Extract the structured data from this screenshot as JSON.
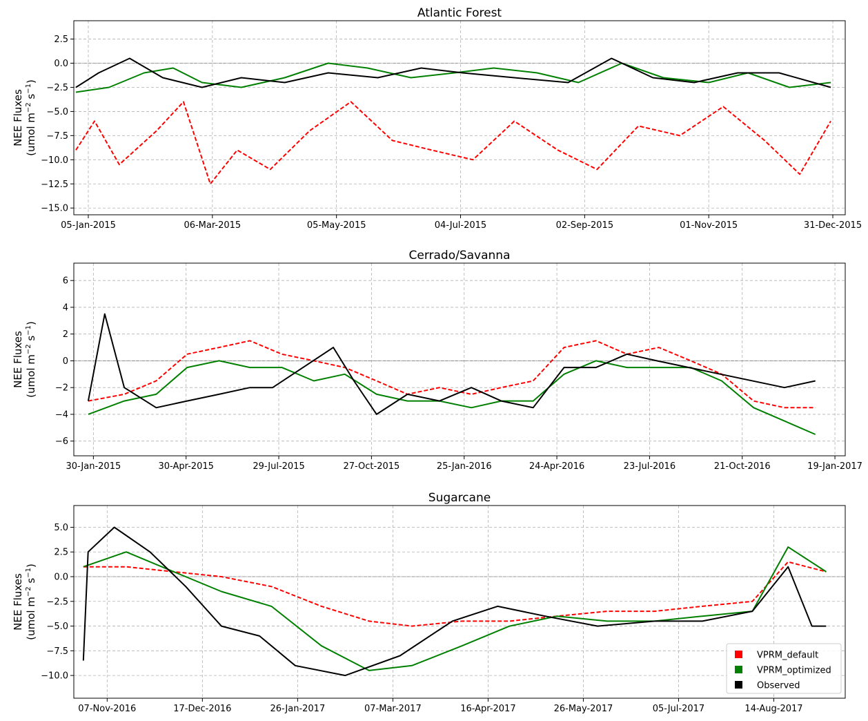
{
  "colors": {
    "VPRM_default": "#ff0000",
    "VPRM_optimized": "#008000",
    "Observed": "#000000",
    "grid": "#b0b0b0"
  },
  "legend": {
    "placement": "lower right",
    "entries": [
      "VPRM_default",
      "VPRM_optimized",
      "Observed"
    ]
  },
  "chart_data": [
    {
      "type": "line",
      "title": "Atlantic Forest",
      "ylabel_line1": "NEE Fluxes",
      "ylabel_line2": "(umol m",
      "ylabel_exp1": "−2",
      "ylabel_mid": " s",
      "ylabel_exp2": "−1",
      "ylabel_end": ")",
      "x_range": [
        "2014-12-29",
        "2016-01-06"
      ],
      "ylim": [
        -15.7,
        4.4
      ],
      "x_ticks": [
        {
          "date": "2015-01-05",
          "label": "05-Jan-2015"
        },
        {
          "date": "2015-03-06",
          "label": "06-Mar-2015"
        },
        {
          "date": "2015-05-05",
          "label": "05-May-2015"
        },
        {
          "date": "2015-07-04",
          "label": "04-Jul-2015"
        },
        {
          "date": "2015-09-02",
          "label": "02-Sep-2015"
        },
        {
          "date": "2015-11-01",
          "label": "01-Nov-2015"
        },
        {
          "date": "2015-12-31",
          "label": "31-Dec-2015"
        }
      ],
      "y_ticks": [
        {
          "value": 2.5,
          "label": "2.5"
        },
        {
          "value": 0,
          "label": "0.0"
        },
        {
          "value": -2.5,
          "label": "−2.5"
        },
        {
          "value": -5,
          "label": "−5.0"
        },
        {
          "value": -7.5,
          "label": "−7.5"
        },
        {
          "value": -10,
          "label": "−10.0"
        },
        {
          "value": -12.5,
          "label": "−12.5"
        },
        {
          "value": -15,
          "label": "−15.0"
        }
      ],
      "grid": true,
      "series": [
        {
          "name": "VPRM_default",
          "style": "dashed",
          "x": [
            "2014-12-30",
            "2015-01-08",
            "2015-01-20",
            "2015-02-07",
            "2015-02-20",
            "2015-03-05",
            "2015-03-18",
            "2015-04-03",
            "2015-04-22",
            "2015-05-12",
            "2015-06-01",
            "2015-06-20",
            "2015-07-10",
            "2015-07-30",
            "2015-08-20",
            "2015-09-08",
            "2015-09-28",
            "2015-10-18",
            "2015-11-08",
            "2015-11-28",
            "2015-12-15",
            "2015-12-30"
          ],
          "values": [
            -9.0,
            -6.0,
            -10.5,
            -7.0,
            -4.0,
            -12.5,
            -9.0,
            -11.0,
            -7.0,
            -4.0,
            -8.0,
            -9.0,
            -10.0,
            -6.0,
            -9.0,
            -11.0,
            -6.5,
            -7.5,
            -4.5,
            -8.0,
            -11.5,
            -6.0
          ]
        },
        {
          "name": "VPRM_optimized",
          "style": "solid",
          "x": [
            "2014-12-30",
            "2015-01-15",
            "2015-02-01",
            "2015-02-15",
            "2015-03-01",
            "2015-03-20",
            "2015-04-10",
            "2015-05-01",
            "2015-05-20",
            "2015-06-10",
            "2015-07-01",
            "2015-07-20",
            "2015-08-10",
            "2015-08-30",
            "2015-09-20",
            "2015-10-10",
            "2015-11-01",
            "2015-11-20",
            "2015-12-10",
            "2015-12-30"
          ],
          "values": [
            -3.0,
            -2.5,
            -1.0,
            -0.5,
            -2.0,
            -2.5,
            -1.5,
            0.0,
            -0.5,
            -1.5,
            -1.0,
            -0.5,
            -1.0,
            -2.0,
            0.0,
            -1.5,
            -2.0,
            -1.0,
            -2.5,
            -2.0
          ]
        },
        {
          "name": "Observed",
          "style": "solid",
          "x": [
            "2014-12-30",
            "2015-01-10",
            "2015-01-25",
            "2015-02-10",
            "2015-03-01",
            "2015-03-20",
            "2015-04-10",
            "2015-05-01",
            "2015-05-25",
            "2015-06-15",
            "2015-07-05",
            "2015-07-30",
            "2015-08-25",
            "2015-09-15",
            "2015-10-05",
            "2015-10-25",
            "2015-11-15",
            "2015-12-05",
            "2015-12-30"
          ],
          "values": [
            -2.5,
            -1.0,
            0.5,
            -1.5,
            -2.5,
            -1.5,
            -2.0,
            -1.0,
            -1.5,
            -0.5,
            -1.0,
            -1.5,
            -2.0,
            0.5,
            -1.5,
            -2.0,
            -1.0,
            -1.0,
            -2.5
          ]
        }
      ]
    },
    {
      "type": "line",
      "title": "Cerrado/Savanna",
      "ylabel_line1": "NEE Fluxes",
      "ylabel_line2": "(umol m",
      "ylabel_exp1": "−2",
      "ylabel_mid": " s",
      "ylabel_exp2": "−1",
      "ylabel_end": ")",
      "x_range": [
        "2015-01-11",
        "2017-01-29"
      ],
      "ylim": [
        -7.1,
        7.3
      ],
      "x_ticks": [
        {
          "date": "2015-01-30",
          "label": "30-Jan-2015"
        },
        {
          "date": "2015-04-30",
          "label": "30-Apr-2015"
        },
        {
          "date": "2015-07-29",
          "label": "29-Jul-2015"
        },
        {
          "date": "2015-10-27",
          "label": "27-Oct-2015"
        },
        {
          "date": "2016-01-25",
          "label": "25-Jan-2016"
        },
        {
          "date": "2016-04-24",
          "label": "24-Apr-2016"
        },
        {
          "date": "2016-07-23",
          "label": "23-Jul-2016"
        },
        {
          "date": "2016-10-21",
          "label": "21-Oct-2016"
        },
        {
          "date": "2017-01-19",
          "label": "19-Jan-2017"
        }
      ],
      "y_ticks": [
        {
          "value": 6,
          "label": "6"
        },
        {
          "value": 4,
          "label": "4"
        },
        {
          "value": 2,
          "label": "2"
        },
        {
          "value": 0,
          "label": "0"
        },
        {
          "value": -2,
          "label": "−2"
        },
        {
          "value": -4,
          "label": "−4"
        },
        {
          "value": -6,
          "label": "−6"
        }
      ],
      "grid": true,
      "series": [
        {
          "name": "VPRM_default",
          "style": "dashed",
          "x": [
            "2015-01-25",
            "2015-03-01",
            "2015-04-01",
            "2015-05-01",
            "2015-06-01",
            "2015-07-01",
            "2015-08-01",
            "2015-09-01",
            "2015-10-01",
            "2015-11-01",
            "2015-12-01",
            "2016-01-01",
            "2016-02-01",
            "2016-03-01",
            "2016-04-01",
            "2016-05-01",
            "2016-06-01",
            "2016-07-01",
            "2016-08-01",
            "2016-09-01",
            "2016-10-01",
            "2016-11-01",
            "2016-12-01",
            "2016-12-31"
          ],
          "values": [
            -3.0,
            -2.5,
            -1.5,
            0.5,
            1.0,
            1.5,
            0.5,
            0.0,
            -0.5,
            -1.5,
            -2.5,
            -2.0,
            -2.5,
            -2.0,
            -1.5,
            1.0,
            1.5,
            0.5,
            1.0,
            0.0,
            -1.0,
            -3.0,
            -3.5,
            -3.5
          ]
        },
        {
          "name": "VPRM_optimized",
          "style": "solid",
          "x": [
            "2015-01-25",
            "2015-03-01",
            "2015-04-01",
            "2015-05-01",
            "2015-06-01",
            "2015-07-01",
            "2015-08-01",
            "2015-09-01",
            "2015-10-01",
            "2015-11-01",
            "2015-12-01",
            "2016-01-01",
            "2016-02-01",
            "2016-03-01",
            "2016-04-01",
            "2016-05-01",
            "2016-06-01",
            "2016-07-01",
            "2016-08-01",
            "2016-09-01",
            "2016-10-01",
            "2016-11-01",
            "2016-12-01",
            "2016-12-31"
          ],
          "values": [
            -4.0,
            -3.0,
            -2.5,
            -0.5,
            0.0,
            -0.5,
            -0.5,
            -1.5,
            -1.0,
            -2.5,
            -3.0,
            -3.0,
            -3.5,
            -3.0,
            -3.0,
            -1.0,
            0.0,
            -0.5,
            -0.5,
            -0.5,
            -1.5,
            -3.5,
            -4.5,
            -5.5
          ]
        },
        {
          "name": "Observed",
          "style": "solid",
          "x": [
            "2015-01-25",
            "2015-02-10",
            "2015-03-01",
            "2015-04-01",
            "2015-05-01",
            "2015-06-01",
            "2015-07-01",
            "2015-07-23",
            "2015-09-20",
            "2015-10-10",
            "2015-11-01",
            "2015-12-01",
            "2016-01-01",
            "2016-02-01",
            "2016-03-01",
            "2016-04-01",
            "2016-05-01",
            "2016-06-01",
            "2016-07-01",
            "2016-07-30",
            "2016-12-01",
            "2016-12-31"
          ],
          "values": [
            -3.0,
            3.5,
            -2.0,
            -3.5,
            -3.0,
            -2.5,
            -2.0,
            -2.0,
            1.0,
            -1.5,
            -4.0,
            -2.5,
            -3.0,
            -2.0,
            -3.0,
            -3.5,
            -0.5,
            -0.5,
            0.5,
            0.0,
            -2.0,
            -1.5
          ]
        }
      ]
    },
    {
      "type": "line",
      "title": "Sugarcane",
      "ylabel_line1": "NEE Fluxes",
      "ylabel_line2": "(umol m",
      "ylabel_exp1": "−2",
      "ylabel_mid": " s",
      "ylabel_exp2": "−1",
      "ylabel_end": ")",
      "x_range": [
        "2016-10-24",
        "2017-09-13"
      ],
      "ylim": [
        -12.3,
        7.2
      ],
      "x_ticks": [
        {
          "date": "2016-11-07",
          "label": "07-Nov-2016"
        },
        {
          "date": "2016-12-17",
          "label": "17-Dec-2016"
        },
        {
          "date": "2017-01-26",
          "label": "26-Jan-2017"
        },
        {
          "date": "2017-03-07",
          "label": "07-Mar-2017"
        },
        {
          "date": "2017-04-16",
          "label": "16-Apr-2017"
        },
        {
          "date": "2017-05-26",
          "label": "26-May-2017"
        },
        {
          "date": "2017-07-05",
          "label": "05-Jul-2017"
        },
        {
          "date": "2017-08-14",
          "label": "14-Aug-2017"
        }
      ],
      "y_ticks": [
        {
          "value": 5,
          "label": "5.0"
        },
        {
          "value": 2.5,
          "label": "2.5"
        },
        {
          "value": 0,
          "label": "0.0"
        },
        {
          "value": -2.5,
          "label": "−2.5"
        },
        {
          "value": -5,
          "label": "−5.0"
        },
        {
          "value": -7.5,
          "label": "−7.5"
        },
        {
          "value": -10,
          "label": "−10.0"
        }
      ],
      "grid": true,
      "series": [
        {
          "name": "VPRM_default",
          "style": "dashed",
          "x": [
            "2016-10-28",
            "2016-11-15",
            "2016-12-05",
            "2016-12-25",
            "2017-01-15",
            "2017-02-05",
            "2017-02-25",
            "2017-03-15",
            "2017-04-05",
            "2017-04-25",
            "2017-05-15",
            "2017-06-05",
            "2017-06-25",
            "2017-07-15",
            "2017-08-05",
            "2017-08-20",
            "2017-09-05"
          ],
          "values": [
            1.0,
            1.0,
            0.5,
            0.0,
            -1.0,
            -3.0,
            -4.5,
            -5.0,
            -4.5,
            -4.5,
            -4.0,
            -3.5,
            -3.5,
            -3.0,
            -2.5,
            1.5,
            0.5
          ]
        },
        {
          "name": "VPRM_optimized",
          "style": "solid",
          "x": [
            "2016-10-28",
            "2016-11-15",
            "2016-12-05",
            "2016-12-25",
            "2017-01-15",
            "2017-02-05",
            "2017-02-25",
            "2017-03-15",
            "2017-04-05",
            "2017-04-25",
            "2017-05-15",
            "2017-06-05",
            "2017-06-25",
            "2017-07-15",
            "2017-08-05",
            "2017-08-20",
            "2017-09-05"
          ],
          "values": [
            1.0,
            2.5,
            0.5,
            -1.5,
            -3.0,
            -7.0,
            -9.5,
            -9.0,
            -7.0,
            -5.0,
            -4.0,
            -4.5,
            -4.5,
            -4.0,
            -3.5,
            3.0,
            0.5
          ]
        },
        {
          "name": "Observed",
          "style": "solid",
          "x": [
            "2016-10-28",
            "2016-10-30",
            "2016-11-10",
            "2016-11-25",
            "2016-12-10",
            "2016-12-25",
            "2017-01-10",
            "2017-01-25",
            "2017-02-15",
            "2017-03-10",
            "2017-04-01",
            "2017-04-20",
            "2017-05-10",
            "2017-06-01",
            "2017-06-25",
            "2017-07-15",
            "2017-08-05",
            "2017-08-20",
            "2017-08-30",
            "2017-09-05"
          ],
          "values": [
            -8.5,
            2.5,
            5.0,
            2.5,
            -1.0,
            -5.0,
            -6.0,
            -9.0,
            -10.0,
            -8.0,
            -4.5,
            -3.0,
            -4.0,
            -5.0,
            -4.5,
            -4.5,
            -3.5,
            1.0,
            -5.0,
            -5.0
          ]
        }
      ]
    }
  ]
}
